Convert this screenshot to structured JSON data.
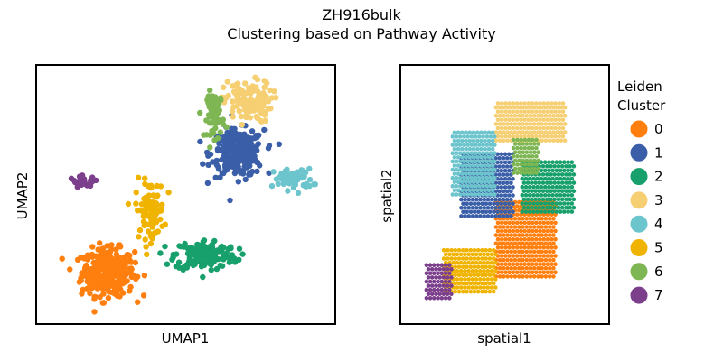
{
  "figure": {
    "title": "ZH916bulk",
    "subtitle": "Clustering based on Pathway Activity"
  },
  "chart_data": [
    {
      "type": "scatter",
      "xlabel": "UMAP1",
      "ylabel": "UMAP2",
      "ticks": false,
      "grid": false,
      "clusters": [
        {
          "label": "0",
          "color": "#ff7f0e",
          "center": [
            -3.4,
            -2.6
          ],
          "spread": [
            1.1,
            0.9
          ],
          "n": 330
        },
        {
          "label": "1",
          "color": "#3a5fa8",
          "center": [
            3.1,
            2.9
          ],
          "spread": [
            1.1,
            0.9
          ],
          "n": 260
        },
        {
          "label": "2",
          "color": "#17a06b",
          "center": [
            1.5,
            -1.8
          ],
          "spread": [
            1.3,
            0.6
          ],
          "n": 160
        },
        {
          "label": "3",
          "color": "#f5cf72",
          "center": [
            3.6,
            5.3
          ],
          "spread": [
            1.0,
            0.8
          ],
          "n": 120
        },
        {
          "label": "4",
          "color": "#6cc4cc",
          "center": [
            5.9,
            1.7
          ],
          "spread": [
            0.8,
            0.4
          ],
          "n": 70
        },
        {
          "label": "5",
          "color": "#f0b400",
          "center": [
            -1.3,
            0.3
          ],
          "spread": [
            0.6,
            1.1
          ],
          "n": 90
        },
        {
          "label": "6",
          "color": "#7fb654",
          "center": [
            2.0,
            4.7
          ],
          "spread": [
            0.35,
            0.9
          ],
          "n": 70
        },
        {
          "label": "7",
          "color": "#7b3f8c",
          "center": [
            -4.6,
            1.6
          ],
          "spread": [
            0.6,
            0.2
          ],
          "n": 30
        }
      ],
      "xlim": [
        -7,
        8
      ],
      "ylim": [
        -5,
        7
      ]
    },
    {
      "type": "scatter",
      "xlabel": "spatial1",
      "ylabel": "spatial2",
      "ticks": false,
      "grid": false,
      "legend": {
        "title": "Leiden Cluster",
        "entries": [
          "0",
          "1",
          "2",
          "3",
          "4",
          "5",
          "6",
          "7"
        ],
        "placement": "right, outside"
      },
      "regions": [
        {
          "label": "0",
          "color": "#ff7f0e",
          "x": [
            5.5,
            9.0
          ],
          "y": [
            2.2,
            5.8
          ]
        },
        {
          "label": "1",
          "color": "#3a5fa8",
          "x": [
            3.5,
            6.5
          ],
          "y": [
            5.0,
            8.0
          ]
        },
        {
          "label": "2",
          "color": "#17a06b",
          "x": [
            7.0,
            10.0
          ],
          "y": [
            5.2,
            7.6
          ]
        },
        {
          "label": "3",
          "color": "#f5cf72",
          "x": [
            5.5,
            9.5
          ],
          "y": [
            8.5,
            10.3
          ]
        },
        {
          "label": "4",
          "color": "#6cc4cc",
          "x": [
            3.0,
            5.5
          ],
          "y": [
            6.0,
            9.0
          ]
        },
        {
          "label": "5",
          "color": "#f0b400",
          "x": [
            2.5,
            5.5
          ],
          "y": [
            1.5,
            3.5
          ]
        },
        {
          "label": "6",
          "color": "#7fb654",
          "x": [
            6.5,
            8.0
          ],
          "y": [
            7.0,
            8.6
          ]
        },
        {
          "label": "7",
          "color": "#7b3f8c",
          "x": [
            1.5,
            3.0
          ],
          "y": [
            1.2,
            2.8
          ]
        }
      ],
      "xlim": [
        0,
        12
      ],
      "ylim": [
        0,
        12
      ]
    }
  ]
}
